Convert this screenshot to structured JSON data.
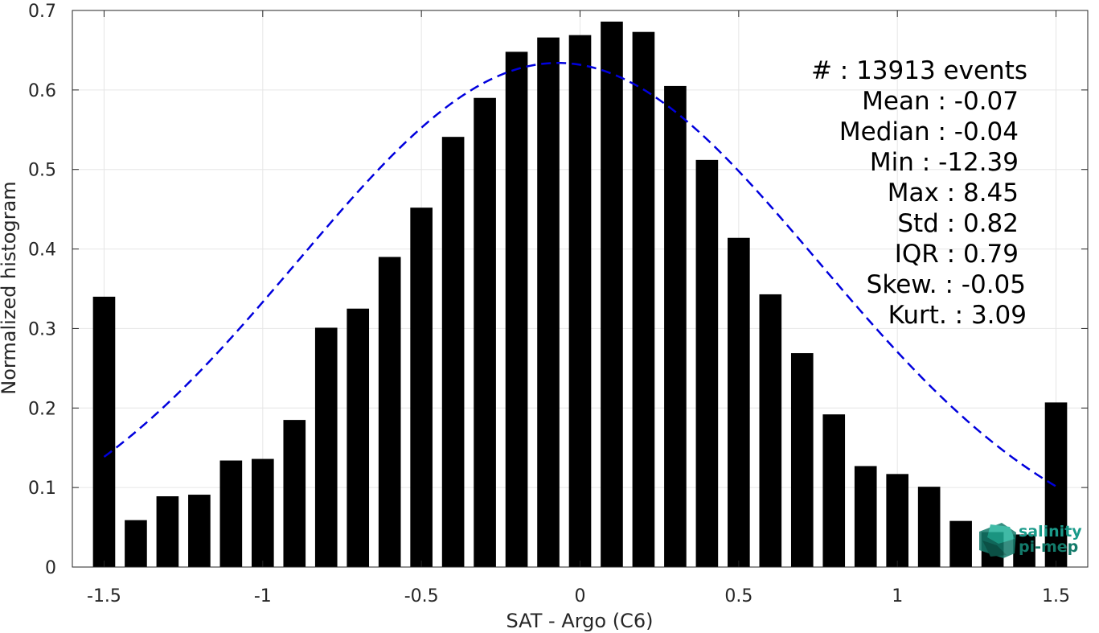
{
  "chart_data": {
    "type": "bar",
    "xlabel": "SAT - Argo (C6)",
    "ylabel": "Normalized histogram",
    "xlim": [
      -1.6,
      1.6
    ],
    "ylim": [
      0,
      0.7
    ],
    "grid": true,
    "x_ticks": [
      -1.5,
      -1,
      -0.5,
      0,
      0.5,
      1,
      1.5
    ],
    "x_tick_labels": [
      "-1.5",
      "-1",
      "-0.5",
      "0",
      "0.5",
      "1",
      "1.5"
    ],
    "y_ticks": [
      0,
      0.1,
      0.2,
      0.3,
      0.4,
      0.5,
      0.6,
      0.7
    ],
    "y_tick_labels": [
      "0",
      "0.1",
      "0.2",
      "0.3",
      "0.4",
      "0.5",
      "0.6",
      "0.7"
    ],
    "bar_width": 0.07,
    "bar_color": "#000000",
    "bins": {
      "x": [
        -1.5,
        -1.4,
        -1.3,
        -1.2,
        -1.1,
        -1.0,
        -0.9,
        -0.8,
        -0.7,
        -0.6,
        -0.5,
        -0.4,
        -0.3,
        -0.2,
        -0.1,
        0.0,
        0.1,
        0.2,
        0.3,
        0.4,
        0.5,
        0.6,
        0.7,
        0.8,
        0.9,
        1.0,
        1.1,
        1.2,
        1.3,
        1.4,
        1.5
      ],
      "values": [
        0.34,
        0.059,
        0.089,
        0.091,
        0.134,
        0.136,
        0.185,
        0.301,
        0.325,
        0.39,
        0.452,
        0.541,
        0.59,
        0.648,
        0.666,
        0.669,
        0.686,
        0.673,
        0.605,
        0.512,
        0.414,
        0.343,
        0.269,
        0.192,
        0.127,
        0.117,
        0.101,
        0.058,
        0.044,
        0.041,
        0.207
      ]
    },
    "fit_curve": {
      "type": "gaussian",
      "mean": -0.07,
      "std": 0.82,
      "peak": 0.634,
      "x_range": [
        -1.5,
        1.5
      ],
      "color": "#0000dd",
      "style": "dashed"
    }
  },
  "stats": [
    {
      "label": "#  : 13913 events"
    },
    {
      "label": "Mean : -0.07"
    },
    {
      "label": "Median : -0.04"
    },
    {
      "label": "Min : -12.39"
    },
    {
      "label": "Max : 8.45"
    },
    {
      "label": "Std : 0.82"
    },
    {
      "label": "IQR : 0.79"
    },
    {
      "label": "Skew. : -0.05"
    },
    {
      "label": "Kurt. : 3.09"
    }
  ],
  "logo": {
    "line1": "salinity",
    "line2": "pi-mep",
    "color": "#1a9a8a"
  }
}
